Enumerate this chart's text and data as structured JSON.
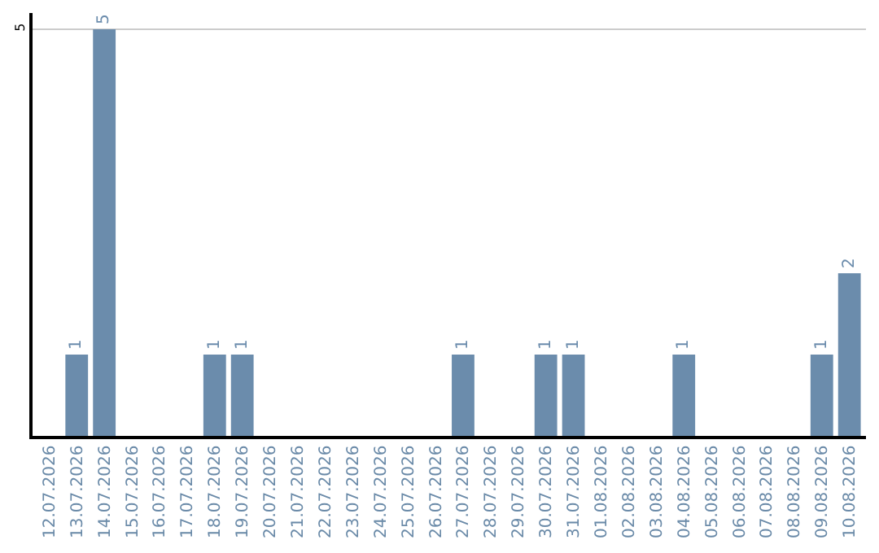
{
  "chart_data": {
    "type": "bar",
    "categories": [
      "12.07.2026",
      "13.07.2026",
      "14.07.2026",
      "15.07.2026",
      "16.07.2026",
      "17.07.2026",
      "18.07.2026",
      "19.07.2026",
      "20.07.2026",
      "21.07.2026",
      "22.07.2026",
      "23.07.2026",
      "24.07.2026",
      "25.07.2026",
      "26.07.2026",
      "27.07.2026",
      "28.07.2026",
      "29.07.2026",
      "30.07.2026",
      "31.07.2026",
      "01.08.2026",
      "02.08.2026",
      "03.08.2026",
      "04.08.2026",
      "05.08.2026",
      "06.08.2026",
      "07.08.2026",
      "08.08.2026",
      "09.08.2026",
      "10.08.2026"
    ],
    "values": [
      0,
      1,
      5,
      0,
      0,
      0,
      1,
      1,
      0,
      0,
      0,
      0,
      0,
      0,
      0,
      1,
      0,
      0,
      1,
      1,
      0,
      0,
      0,
      1,
      0,
      0,
      0,
      0,
      1,
      2
    ],
    "value_labels": [
      null,
      "1",
      "5",
      null,
      null,
      null,
      "1",
      "1",
      null,
      null,
      null,
      null,
      null,
      null,
      null,
      "1",
      null,
      null,
      "1",
      "1",
      null,
      null,
      null,
      "1",
      null,
      null,
      null,
      null,
      "1",
      "2"
    ],
    "color": "#6b8cac",
    "ylim": [
      0,
      5.2
    ],
    "yticks": [
      5
    ],
    "grid": "y",
    "legend": false
  }
}
